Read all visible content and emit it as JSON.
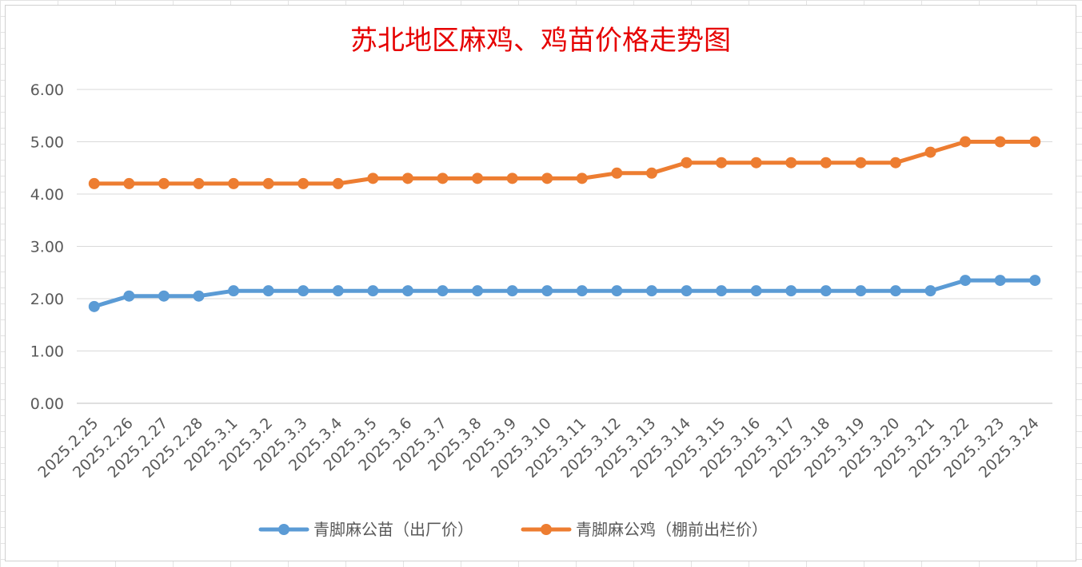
{
  "chart_data": {
    "type": "line",
    "title": "苏北地区麻鸡、鸡苗价格走势图",
    "xlabel": "",
    "ylabel": "",
    "ylim": [
      0,
      6
    ],
    "yticks": [
      "0.00",
      "1.00",
      "2.00",
      "3.00",
      "4.00",
      "5.00",
      "6.00"
    ],
    "grid": true,
    "legend_position": "bottom",
    "categories": [
      "2025.2.25",
      "2025.2.26",
      "2025.2.27",
      "2025.2.28",
      "2025.3.1",
      "2025.3.2",
      "2025.3.3",
      "2025.3.4",
      "2025.3.5",
      "2025.3.6",
      "2025.3.7",
      "2025.3.8",
      "2025.3.9",
      "2025.3.10",
      "2025.3.11",
      "2025.3.12",
      "2025.3.13",
      "2025.3.14",
      "2025.3.15",
      "2025.3.16",
      "2025.3.17",
      "2025.3.18",
      "2025.3.19",
      "2025.3.20",
      "2025.3.21",
      "2025.3.22",
      "2025.3.23",
      "2025.3.24"
    ],
    "series": [
      {
        "name": "青脚麻公苗（出厂价）",
        "color": "#5b9bd5",
        "values": [
          1.85,
          2.05,
          2.05,
          2.05,
          2.15,
          2.15,
          2.15,
          2.15,
          2.15,
          2.15,
          2.15,
          2.15,
          2.15,
          2.15,
          2.15,
          2.15,
          2.15,
          2.15,
          2.15,
          2.15,
          2.15,
          2.15,
          2.15,
          2.15,
          2.15,
          2.35,
          2.35,
          2.35
        ]
      },
      {
        "name": "青脚麻公鸡（棚前出栏价）",
        "color": "#ed7d31",
        "values": [
          4.2,
          4.2,
          4.2,
          4.2,
          4.2,
          4.2,
          4.2,
          4.2,
          4.3,
          4.3,
          4.3,
          4.3,
          4.3,
          4.3,
          4.3,
          4.4,
          4.4,
          4.6,
          4.6,
          4.6,
          4.6,
          4.6,
          4.6,
          4.6,
          4.8,
          5.0,
          5.0,
          5.0
        ]
      }
    ]
  }
}
